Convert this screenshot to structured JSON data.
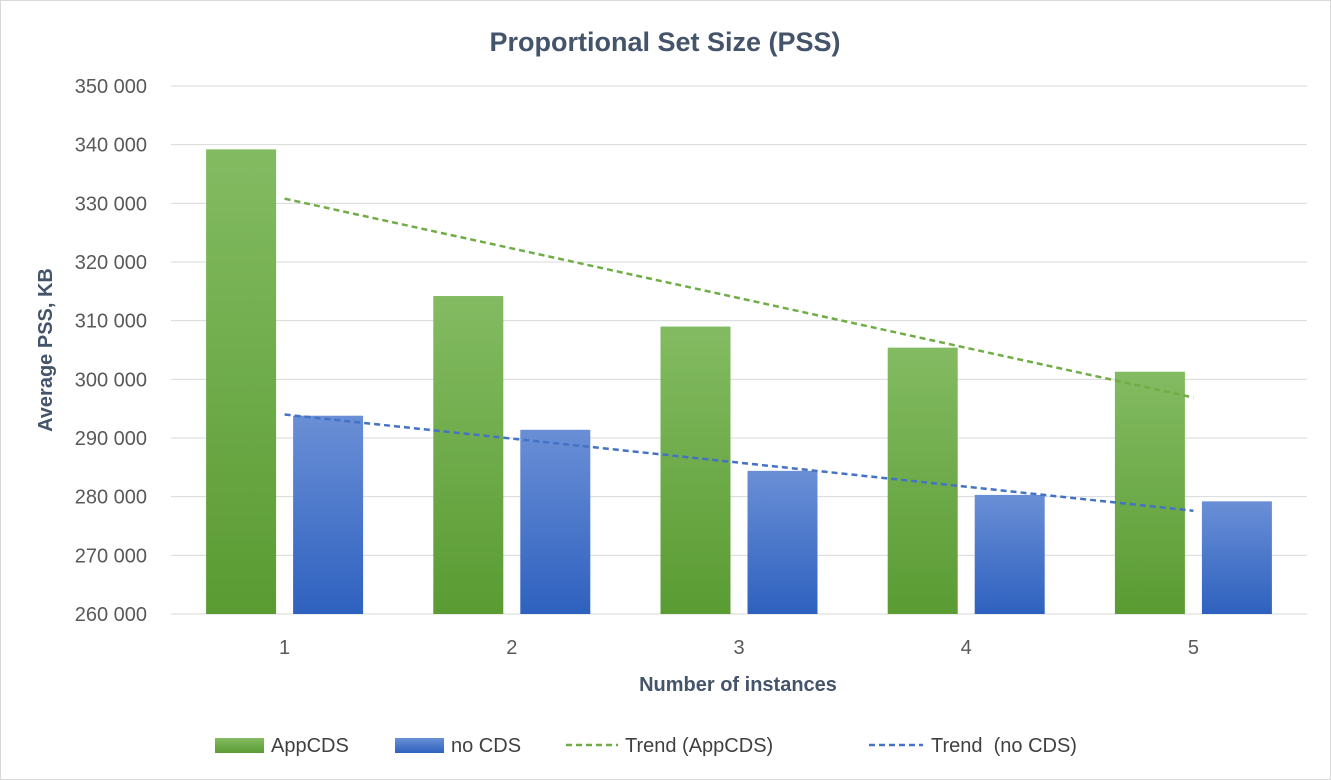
{
  "chart_data": {
    "type": "bar",
    "title": "Proportional Set Size (PSS)",
    "xlabel": "Number of instances",
    "ylabel": "Average PSS, KB",
    "categories": [
      "1",
      "2",
      "3",
      "4",
      "5"
    ],
    "ylim": [
      260000,
      350000
    ],
    "yticks": [
      260000,
      270000,
      280000,
      290000,
      300000,
      310000,
      320000,
      330000,
      340000,
      350000
    ],
    "ytick_labels": [
      "260 000",
      "270 000",
      "280 000",
      "290 000",
      "300 000",
      "310 000",
      "320 000",
      "330 000",
      "340 000",
      "350 000"
    ],
    "grid": true,
    "legend_position": "bottom",
    "series": [
      {
        "name": "AppCDS",
        "kind": "bar",
        "color": "#70ad47",
        "values": [
          339200,
          314200,
          309000,
          305400,
          301300
        ]
      },
      {
        "name": "no CDS",
        "kind": "bar",
        "color": "#4472c4",
        "values": [
          293800,
          291400,
          284400,
          280300,
          279200
        ]
      }
    ],
    "trendlines": [
      {
        "name": "Trend (AppCDS)",
        "kind": "linear-dashed",
        "color": "#70ad47",
        "start": 330800,
        "end": 296900
      },
      {
        "name": "Trend  (no CDS)",
        "kind": "linear-dashed",
        "color": "#4472c4",
        "start": 294000,
        "end": 277600
      }
    ]
  }
}
